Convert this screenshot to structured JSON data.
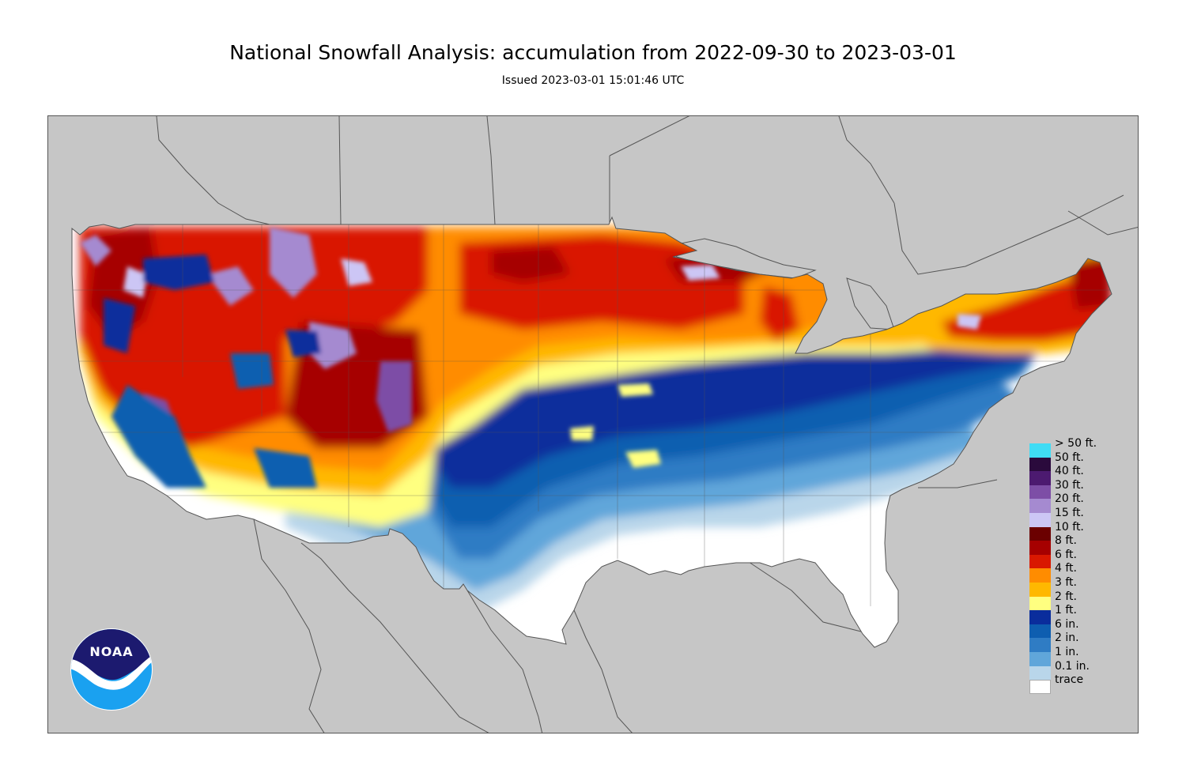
{
  "header": {
    "title": "National Snowfall Analysis: accumulation from 2022-09-30 to 2023-03-01",
    "issued": "Issued 2023-03-01 15:01:46 UTC"
  },
  "colors": {
    "background_land_outside": "#c6c6c6",
    "boundary_lines": "#555555",
    "trace": "#ffffff"
  },
  "legend": {
    "items": [
      {
        "label": "> 50 ft.",
        "color": "#3fdcf5"
      },
      {
        "label": "50 ft.",
        "color": "#2a0a3c"
      },
      {
        "label": "40 ft.",
        "color": "#4c1a70"
      },
      {
        "label": "30 ft.",
        "color": "#7d4ea6"
      },
      {
        "label": "20 ft.",
        "color": "#a58ad0"
      },
      {
        "label": "15 ft.",
        "color": "#ccc6f5"
      },
      {
        "label": "10 ft.",
        "color": "#6b0000"
      },
      {
        "label": "8 ft.",
        "color": "#a60000"
      },
      {
        "label": "6 ft.",
        "color": "#d91800"
      },
      {
        "label": "4 ft.",
        "color": "#ff8c00"
      },
      {
        "label": "3 ft.",
        "color": "#ffb800"
      },
      {
        "label": "2 ft.",
        "color": "#ffff80"
      },
      {
        "label": "1 ft.",
        "color": "#0a2d9c"
      },
      {
        "label": "6 in.",
        "color": "#0e5eb0"
      },
      {
        "label": "2 in.",
        "color": "#2f7cc4"
      },
      {
        "label": "1 in.",
        "color": "#60a6da"
      },
      {
        "label": "0.1 in.",
        "color": "#b9d6ea"
      },
      {
        "label": "trace",
        "color": "#ffffff"
      }
    ]
  },
  "logo": {
    "text": "NOAA",
    "colors": {
      "top": "#1c1a6f",
      "bottom": "#1aa1f0",
      "bird": "#ffffff"
    }
  }
}
